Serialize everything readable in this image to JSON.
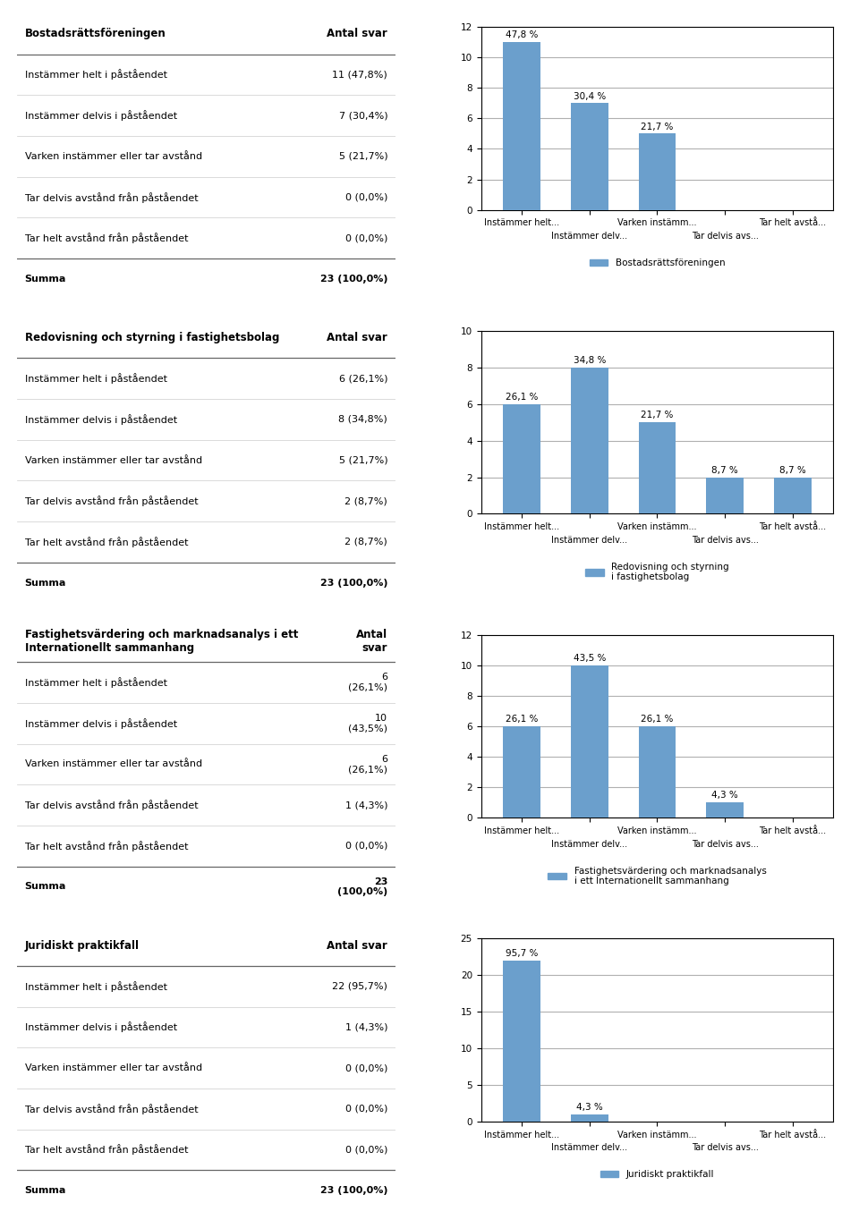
{
  "chart_data": [
    {
      "type": "bar",
      "title": "Bostadsrättsföreningen",
      "categories": [
        "Instämmer helt...",
        "Instämmer delv...",
        "Varken instämm...",
        "Tar delvis avs...",
        "Tar helt avstå..."
      ],
      "series": [
        {
          "name": "Bostadsrättsföreningen",
          "color": "#6B9FCC",
          "values": [
            11,
            7,
            5,
            0,
            0
          ],
          "value_labels": [
            "47,8 %",
            "30,4 %",
            "21,7 %",
            null,
            null
          ]
        }
      ],
      "data_labels": true,
      "ylim": [
        0,
        12
      ],
      "yticks": [
        0,
        2,
        4,
        6,
        8,
        10,
        12
      ],
      "grid": true,
      "legend": "upper center",
      "table": {
        "header": "Antal svar",
        "rows": [
          {
            "label": "Instämmer helt i påståendet",
            "value": "11 (47,8%)"
          },
          {
            "label": "Instämmer delvis i påståendet",
            "value": "7 (30,4%)"
          },
          {
            "label": "Varken instämmer eller tar avstånd",
            "value": "5 (21,7%)"
          },
          {
            "label": "Tar delvis avstånd från påståendet",
            "value": "0 (0,0%)"
          },
          {
            "label": "Tar helt avstånd från påståendet",
            "value": "0 (0,0%)"
          }
        ],
        "total": {
          "label": "Summa",
          "value": "23 (100,0%)"
        }
      }
    },
    {
      "type": "bar",
      "title": "Redovisning och styrning i fastighetsbolag",
      "categories": [
        "Instämmer helt...",
        "Instämmer delv...",
        "Varken instämm...",
        "Tar delvis avs...",
        "Tar helt avstå..."
      ],
      "series": [
        {
          "name": "Redovisning och styrning\ni fastighetsbolag",
          "color": "#6B9FCC",
          "values": [
            6,
            8,
            5,
            2,
            2
          ],
          "value_labels": [
            "26,1 %",
            "34,8 %",
            "21,7 %",
            "8,7 %",
            "8,7 %"
          ]
        }
      ],
      "data_labels": true,
      "ylim": [
        0,
        10
      ],
      "yticks": [
        0,
        2,
        4,
        6,
        8,
        10
      ],
      "grid": true,
      "legend": "upper center",
      "table": {
        "header": "Antal svar",
        "rows": [
          {
            "label": "Instämmer helt i påståendet",
            "value": "6 (26,1%)"
          },
          {
            "label": "Instämmer delvis i påståendet",
            "value": "8 (34,8%)"
          },
          {
            "label": "Varken instämmer eller tar avstånd",
            "value": "5 (21,7%)"
          },
          {
            "label": "Tar delvis avstånd från påståendet",
            "value": "2 (8,7%)"
          },
          {
            "label": "Tar helt avstånd från påståendet",
            "value": "2 (8,7%)"
          }
        ],
        "total": {
          "label": "Summa",
          "value": "23 (100,0%)"
        }
      }
    },
    {
      "type": "bar",
      "title": "Fastighetsvärdering och marknadsanalys i ett\nInternationellt sammanhang",
      "categories": [
        "Instämmer helt...",
        "Instämmer delv...",
        "Varken instämm...",
        "Tar delvis avs...",
        "Tar helt avstå..."
      ],
      "series": [
        {
          "name": "Fastighetsvärdering och marknadsanalys\ni ett Internationellt sammanhang",
          "color": "#6B9FCC",
          "values": [
            6,
            10,
            6,
            1,
            0
          ],
          "value_labels": [
            "26,1 %",
            "43,5 %",
            "26,1 %",
            "4,3 %",
            null
          ]
        }
      ],
      "data_labels": true,
      "ylim": [
        0,
        12
      ],
      "yticks": [
        0,
        2,
        4,
        6,
        8,
        10,
        12
      ],
      "grid": true,
      "legend": "upper center",
      "table": {
        "header": "Antal\nsvar",
        "rows": [
          {
            "label": "Instämmer helt i påståendet",
            "value": "6\n(26,1%)"
          },
          {
            "label": "Instämmer delvis i påståendet",
            "value": "10\n(43,5%)"
          },
          {
            "label": "Varken instämmer eller tar avstånd",
            "value": "6\n(26,1%)"
          },
          {
            "label": "Tar delvis avstånd från påståendet",
            "value": "1 (4,3%)"
          },
          {
            "label": "Tar helt avstånd från påståendet",
            "value": "0 (0,0%)"
          }
        ],
        "total": {
          "label": "Summa",
          "value": "23\n(100,0%)"
        }
      }
    },
    {
      "type": "bar",
      "title": "Juridiskt praktikfall",
      "categories": [
        "Instämmer helt...",
        "Instämmer delv...",
        "Varken instämm...",
        "Tar delvis avs...",
        "Tar helt avstå..."
      ],
      "series": [
        {
          "name": "Juridiskt praktikfall",
          "color": "#6B9FCC",
          "values": [
            22,
            1,
            0,
            0,
            0
          ],
          "value_labels": [
            "95,7 %",
            "4,3 %",
            null,
            null,
            null
          ]
        }
      ],
      "data_labels": true,
      "ylim": [
        0,
        25
      ],
      "yticks": [
        0,
        5,
        10,
        15,
        20,
        25
      ],
      "grid": true,
      "legend": "upper center",
      "table": {
        "header": "Antal svar",
        "rows": [
          {
            "label": "Instämmer helt i påståendet",
            "value": "22 (95,7%)"
          },
          {
            "label": "Instämmer delvis i påståendet",
            "value": "1 (4,3%)"
          },
          {
            "label": "Varken instämmer eller tar avstånd",
            "value": "0 (0,0%)"
          },
          {
            "label": "Tar delvis avstånd från påståendet",
            "value": "0 (0,0%)"
          },
          {
            "label": "Tar helt avstånd från påståendet",
            "value": "0 (0,0%)"
          }
        ],
        "total": {
          "label": "Summa",
          "value": "23 (100,0%)"
        }
      }
    }
  ]
}
